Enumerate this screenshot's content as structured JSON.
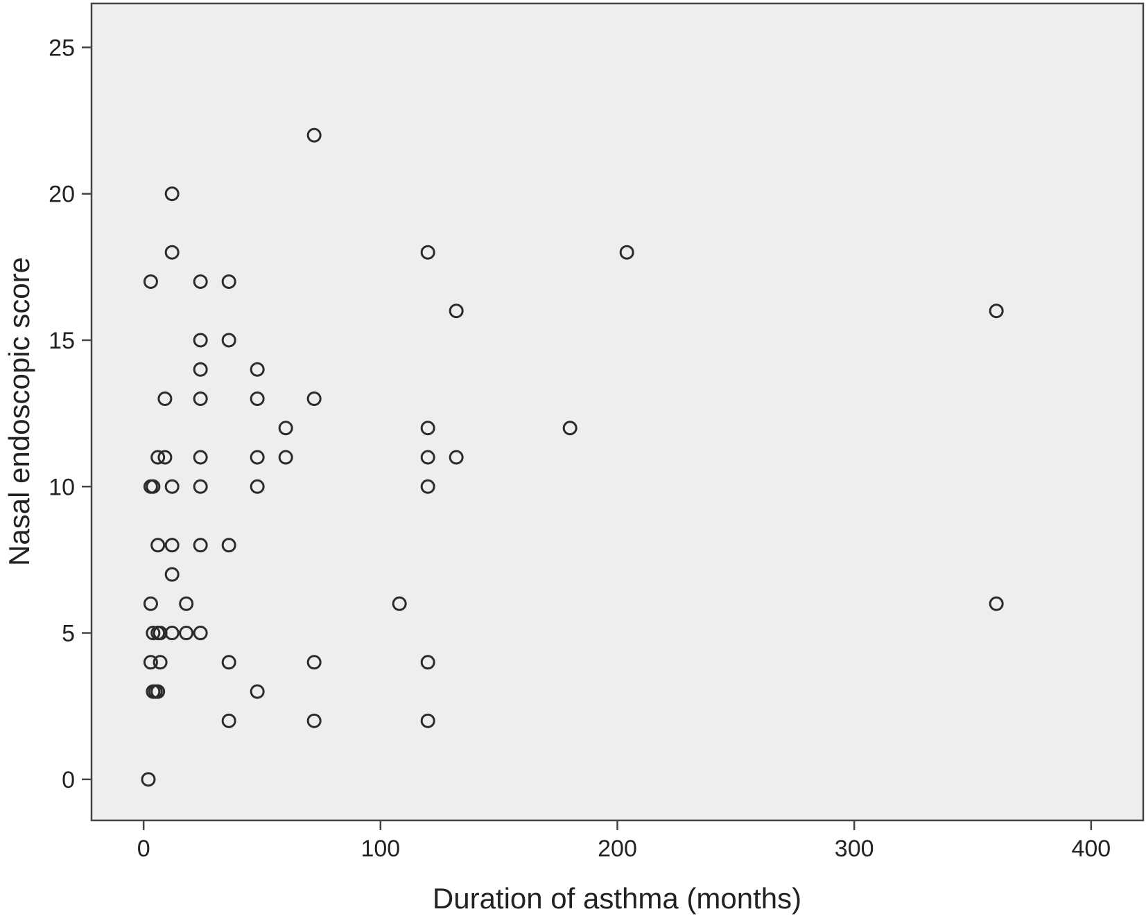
{
  "chart_data": {
    "type": "scatter",
    "title": "",
    "xlabel": "Duration of asthma (months)",
    "ylabel": "Nasal endoscopic score",
    "xlim": [
      -22,
      422
    ],
    "ylim": [
      -1.4,
      26.5
    ],
    "xticks": [
      0,
      100,
      200,
      300,
      400
    ],
    "yticks": [
      0,
      5,
      10,
      15,
      20,
      25
    ],
    "grid": false,
    "legend": "none",
    "colors": {
      "plot_background": "#eeeeee",
      "marker_stroke": "#2b2b2b",
      "axis": "#444444"
    },
    "points": [
      {
        "x": 2,
        "y": 0
      },
      {
        "x": 4,
        "y": 3
      },
      {
        "x": 5,
        "y": 3
      },
      {
        "x": 6,
        "y": 3
      },
      {
        "x": 3,
        "y": 4
      },
      {
        "x": 7,
        "y": 4
      },
      {
        "x": 4,
        "y": 5
      },
      {
        "x": 6,
        "y": 5
      },
      {
        "x": 7,
        "y": 5
      },
      {
        "x": 12,
        "y": 5
      },
      {
        "x": 18,
        "y": 5
      },
      {
        "x": 24,
        "y": 5
      },
      {
        "x": 3,
        "y": 6
      },
      {
        "x": 18,
        "y": 6
      },
      {
        "x": 12,
        "y": 7
      },
      {
        "x": 6,
        "y": 8
      },
      {
        "x": 12,
        "y": 8
      },
      {
        "x": 24,
        "y": 8
      },
      {
        "x": 36,
        "y": 8
      },
      {
        "x": 3,
        "y": 10
      },
      {
        "x": 4,
        "y": 10
      },
      {
        "x": 12,
        "y": 10
      },
      {
        "x": 24,
        "y": 10
      },
      {
        "x": 6,
        "y": 11
      },
      {
        "x": 9,
        "y": 11
      },
      {
        "x": 24,
        "y": 11
      },
      {
        "x": 9,
        "y": 13
      },
      {
        "x": 24,
        "y": 13
      },
      {
        "x": 24,
        "y": 14
      },
      {
        "x": 24,
        "y": 15
      },
      {
        "x": 3,
        "y": 17
      },
      {
        "x": 24,
        "y": 17
      },
      {
        "x": 12,
        "y": 18
      },
      {
        "x": 12,
        "y": 20
      },
      {
        "x": 36,
        "y": 2
      },
      {
        "x": 36,
        "y": 4
      },
      {
        "x": 36,
        "y": 15
      },
      {
        "x": 36,
        "y": 17
      },
      {
        "x": 48,
        "y": 3
      },
      {
        "x": 48,
        "y": 10
      },
      {
        "x": 48,
        "y": 11
      },
      {
        "x": 48,
        "y": 13
      },
      {
        "x": 48,
        "y": 14
      },
      {
        "x": 60,
        "y": 11
      },
      {
        "x": 60,
        "y": 12
      },
      {
        "x": 72,
        "y": 2
      },
      {
        "x": 72,
        "y": 4
      },
      {
        "x": 72,
        "y": 13
      },
      {
        "x": 72,
        "y": 22
      },
      {
        "x": 108,
        "y": 6
      },
      {
        "x": 120,
        "y": 2
      },
      {
        "x": 120,
        "y": 4
      },
      {
        "x": 120,
        "y": 10
      },
      {
        "x": 120,
        "y": 11
      },
      {
        "x": 120,
        "y": 12
      },
      {
        "x": 120,
        "y": 18
      },
      {
        "x": 132,
        "y": 11
      },
      {
        "x": 132,
        "y": 16
      },
      {
        "x": 180,
        "y": 12
      },
      {
        "x": 204,
        "y": 18
      },
      {
        "x": 360,
        "y": 6
      },
      {
        "x": 360,
        "y": 16
      }
    ]
  }
}
